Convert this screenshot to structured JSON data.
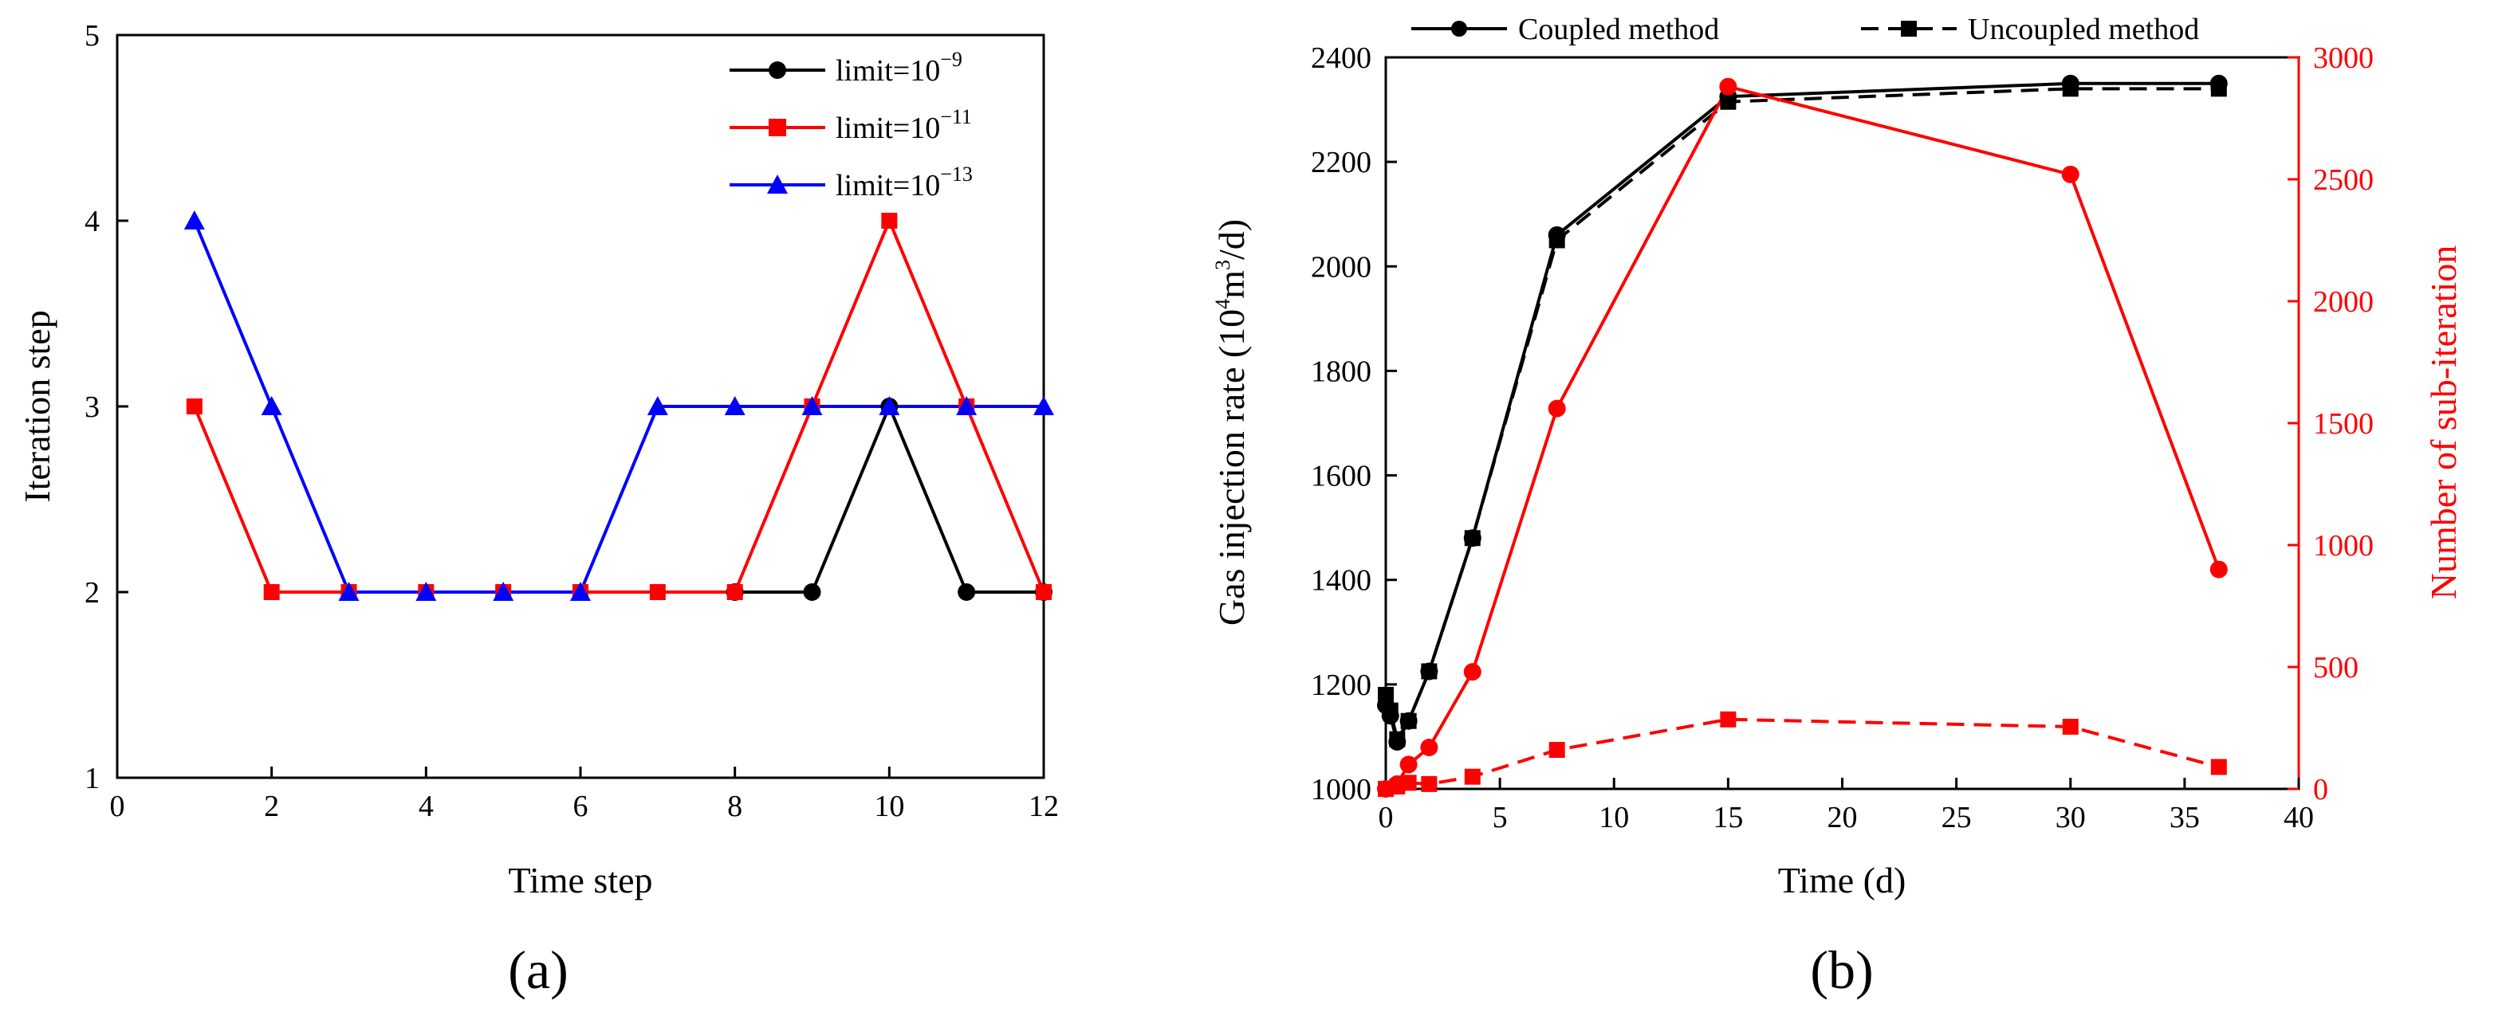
{
  "colors": {
    "black": "#000000",
    "red": "#ff0000",
    "blue": "#0000ff"
  },
  "panel_labels": [
    "(a)",
    "(b)"
  ],
  "chart_data": [
    {
      "type": "line",
      "panel": "(a)",
      "xlabel": "Time step",
      "ylabel": "Iteration step",
      "xlim": [
        0,
        12
      ],
      "ylim": [
        1,
        5
      ],
      "xticks": [
        0,
        2,
        4,
        6,
        8,
        10,
        12
      ],
      "yticks": [
        1,
        2,
        3,
        4,
        5
      ],
      "legend_position": "top-right",
      "series": [
        {
          "name": "limit=10",
          "exponent": "−9",
          "color": "#000000",
          "marker": "circle",
          "x": [
            8,
            9,
            10,
            11,
            12
          ],
          "y": [
            2,
            2,
            3,
            2,
            2
          ]
        },
        {
          "name": "limit=10",
          "exponent": "−11",
          "color": "#ff0000",
          "marker": "square",
          "x": [
            1,
            2,
            3,
            4,
            5,
            6,
            7,
            8,
            9,
            10,
            11,
            12
          ],
          "y": [
            3,
            2,
            2,
            2,
            2,
            2,
            2,
            2,
            3,
            4,
            3,
            2
          ]
        },
        {
          "name": "limit=10",
          "exponent": "−13",
          "color": "#0000ff",
          "marker": "triangle",
          "x": [
            1,
            2,
            3,
            4,
            5,
            6,
            7,
            8,
            9,
            10,
            11,
            12
          ],
          "y": [
            4,
            3,
            2,
            2,
            2,
            2,
            3,
            3,
            3,
            3,
            3,
            3
          ]
        }
      ]
    },
    {
      "type": "line",
      "panel": "(b)",
      "xlabel": "Time (d)",
      "ylabel_left": "Gas injection rate (10",
      "ylabel_left_sup1": "4",
      "ylabel_left_mid": "m",
      "ylabel_left_sup2": "3",
      "ylabel_left_end": "/d)",
      "ylabel_right": "Number of sub-iteration",
      "xlim": [
        0,
        40
      ],
      "ylim_left": [
        1000,
        2400
      ],
      "ylim_right": [
        0,
        3000
      ],
      "xticks": [
        0,
        5,
        10,
        15,
        20,
        25,
        30,
        35,
        40
      ],
      "yticks_left": [
        1000,
        1200,
        1400,
        1600,
        1800,
        2000,
        2200,
        2400
      ],
      "yticks_right": [
        0,
        500,
        1000,
        1500,
        2000,
        2500,
        3000
      ],
      "legend": [
        "Coupled method",
        "Uncoupled method"
      ],
      "series": [
        {
          "name": "Coupled method - gas injection rate",
          "axis": "left",
          "color": "#000000",
          "marker": "circle",
          "dash": false,
          "x": [
            0,
            0.2,
            0.5,
            1,
            1.9,
            3.8,
            7.5,
            15,
            30,
            36.5
          ],
          "y": [
            1160,
            1140,
            1090,
            1130,
            1225,
            1480,
            2060,
            2325,
            2350,
            2350
          ]
        },
        {
          "name": "Uncoupled method - gas injection rate",
          "axis": "left",
          "color": "#000000",
          "marker": "square",
          "dash": true,
          "x": [
            0,
            0.2,
            0.5,
            1,
            1.9,
            3.8,
            7.5,
            15,
            30,
            36.5
          ],
          "y": [
            1180,
            1150,
            1095,
            1130,
            1225,
            1480,
            2050,
            2315,
            2340,
            2340
          ]
        },
        {
          "name": "Coupled method - sub-iterations",
          "axis": "right",
          "color": "#ff0000",
          "marker": "circle",
          "dash": false,
          "x": [
            0,
            0.5,
            1,
            1.9,
            3.8,
            7.5,
            15,
            30,
            36.5
          ],
          "y": [
            0,
            20,
            100,
            170,
            480,
            1560,
            2880,
            2520,
            900
          ]
        },
        {
          "name": "Uncoupled method - sub-iterations",
          "axis": "right",
          "color": "#ff0000",
          "marker": "square",
          "dash": true,
          "x": [
            0,
            0.5,
            1,
            1.9,
            3.8,
            7.5,
            15,
            30,
            36.5
          ],
          "y": [
            0,
            10,
            25,
            20,
            50,
            160,
            285,
            255,
            90
          ]
        }
      ]
    }
  ]
}
